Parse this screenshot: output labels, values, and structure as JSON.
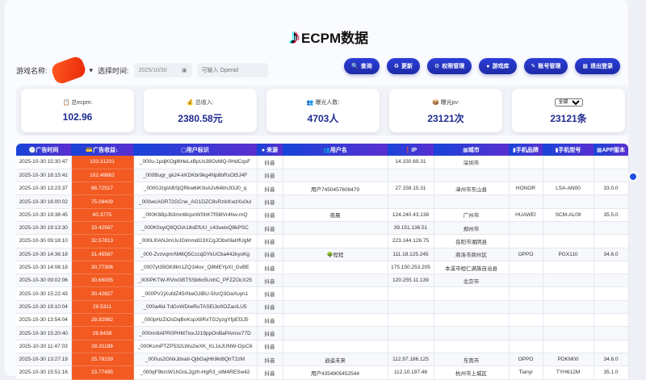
{
  "header": {
    "logo_icon": "tiktok-note-icon",
    "title": "ECPM数据"
  },
  "filters": {
    "game_label": "游戏名称:",
    "time_label": "选择时间:",
    "date_value": "2025/10/30",
    "openid_placeholder": "可输入 Openid"
  },
  "buttons": [
    {
      "icon": "🔍",
      "label": "查询"
    },
    {
      "icon": "♻",
      "label": "更新"
    },
    {
      "icon": "⚙",
      "label": "权限管理"
    },
    {
      "icon": "●",
      "label": "游戏库"
    },
    {
      "icon": "✎",
      "label": "账号管理"
    },
    {
      "icon": "▦",
      "label": "退出登录"
    }
  ],
  "stats": [
    {
      "icon": "📋",
      "label": "总ecpm:",
      "value": "102.96"
    },
    {
      "icon": "💰",
      "label": "总收入:",
      "value": "2380.58元"
    },
    {
      "icon": "👥",
      "label": "曝光人数:",
      "value": "4703人"
    },
    {
      "icon": "📦",
      "label": "曝光pv:",
      "value": "23121次"
    },
    {
      "select": "全部",
      "value": "23121条"
    }
  ],
  "table": {
    "headers": [
      "🕒广告时间",
      "💳广告收益↓",
      "▢用户标识",
      "● 来源",
      "👥用户名",
      "❗IP",
      "▦城市",
      "▮手机品牌",
      "▮手机型号",
      "▦APP版本"
    ],
    "rows": [
      [
        "2025-10-30 15:30:47",
        "103.31201",
        "_000u-1pdjKOgl6HeLxBpUs38OvMQ-0HdCqsF",
        "抖音",
        "",
        "14.150.69.31",
        "深圳市",
        "",
        "",
        ""
      ],
      [
        "2025-10-30 18:15:41",
        "102.49862",
        "_000Bugr_qk24-kKDKbr9kg4Np8bRsOt5J4F",
        "抖音",
        "",
        "",
        "",
        "",
        "",
        ""
      ],
      [
        "2025-10-30 13:23:37",
        "88.72517",
        "_0000JzgIABSjQRkw6iK0oA2v64tmJt3J0_q",
        "抖音",
        "用户7450457608479",
        "27.158.15.31",
        "漳州市东山县",
        "HONOR",
        "LSA-AN00",
        "33.0.0"
      ],
      [
        "2025-10-30 16:00:02",
        "75.08409",
        "_000wcAGR72GCne_AG1DZC8sRzlcKwzXu0ul",
        "抖音",
        "",
        "",
        "",
        "",
        "",
        ""
      ],
      [
        "2025-10-30 19:38:45",
        "60.3775",
        "_000K6BpJb3mnt8cpnWShK7fS6lVr4hw-mQ",
        "抖音",
        "夜晨",
        "124.240.43.138",
        "广州市",
        "HUAWEI",
        "SCM-AL09",
        "35.5.0"
      ],
      [
        "2025-10-30 19:13:30",
        "33.42567",
        "_000K0xyiQ8QOiA18oEfUU_c43uelxQ8kPSC",
        "抖音",
        "",
        "39.151.136.51",
        "郑州市",
        "",
        "",
        ""
      ],
      [
        "2025-10-30 09:18:10",
        "32.57813",
        "_000LI0ANJmUvJGimmdG3XCgJObx0laHfUgM",
        "抖音",
        "",
        "223.144.126.75",
        "岳阳市湘阴县",
        "",
        "",
        ""
      ],
      [
        "2025-10-30 14:36:18",
        "31.45587",
        "_000-Zvzvqmrl\\M6Q5CccqDYkUCba442kyoKg",
        "抖音",
        "🌳程程",
        "111.18.125.245",
        "商洛市商州区",
        "OPPO",
        "PGX110",
        "34.6.0"
      ],
      [
        "2025-10-30 14:08:18",
        "30.77306",
        "_0007yt39GK8lm1ZQ1l4ov_Q8MEYpXl_GvBE",
        "抖音",
        "",
        "175.150.253.205",
        "本溪市桓仁满族自治县",
        "",
        "",
        ""
      ],
      [
        "2025-10-30 09:02:06",
        "30.66005",
        "_000PKTW-RVlxGBTSSb6x5UxhC_PFZZOcX25",
        "抖音",
        "",
        "120.255.11.139",
        "北京市",
        "",
        "",
        ""
      ],
      [
        "2025-10-30 15:22:43",
        "30.42827",
        "_000PV2jXufdZ45rNwOJiBU-5hzQ3OaXuyn1",
        "抖音",
        "",
        "",
        "",
        "",
        "",
        ""
      ],
      [
        "2025-10-30 19:10:04",
        "29.5311",
        "_000a4ld-TdGvWDiwRuTASEi3o0OZaclLU5",
        "抖音",
        "",
        "",
        "",
        "",
        "",
        ""
      ],
      [
        "2025-10-30 13:54:04",
        "28.92982",
        "_000pHzZiOsDqBnKspX8RxTG2yzgYfpEf3J5",
        "抖音",
        "",
        "",
        "",
        "",
        "",
        ""
      ],
      [
        "2025-10-30 15:20:40",
        "28.8438",
        "_000nn9APR0PHM7ioxJ219ppOnBaPAmsv77D",
        "抖音",
        "",
        "",
        "",
        "",
        "",
        ""
      ],
      [
        "2025-10-30 11:47:03",
        "28.31189",
        "_000KsmPTZP532LWu2wXK_KL1kJUNW-OjsC6",
        "抖音",
        "",
        "",
        "",
        "",
        "",
        ""
      ],
      [
        "2025-10-30 13:27:19",
        "25.78159",
        "_000us2GNkJdvaIl-QjbGajHh9kt8QtrT2zM",
        "抖音",
        "逍遥未来",
        "112.97.186.125",
        "东莞市",
        "OPPO",
        "PDKM00",
        "34.6.0"
      ],
      [
        "2025-10-30 15:51:16",
        "23.77495",
        "_000qF9krcW1hOoL2gzh-HgR3_stM4RESw42",
        "抖音",
        "用户4354905452544",
        "112.10.197.48",
        "杭州市上城区",
        "Tianyi",
        "TYH612M",
        "35.1.0"
      ]
    ]
  },
  "colors": {
    "accent": "#1f2aa6",
    "revenue_bg": "#f25a22",
    "header_from": "#1744d8",
    "header_to": "#5a2fcf"
  }
}
